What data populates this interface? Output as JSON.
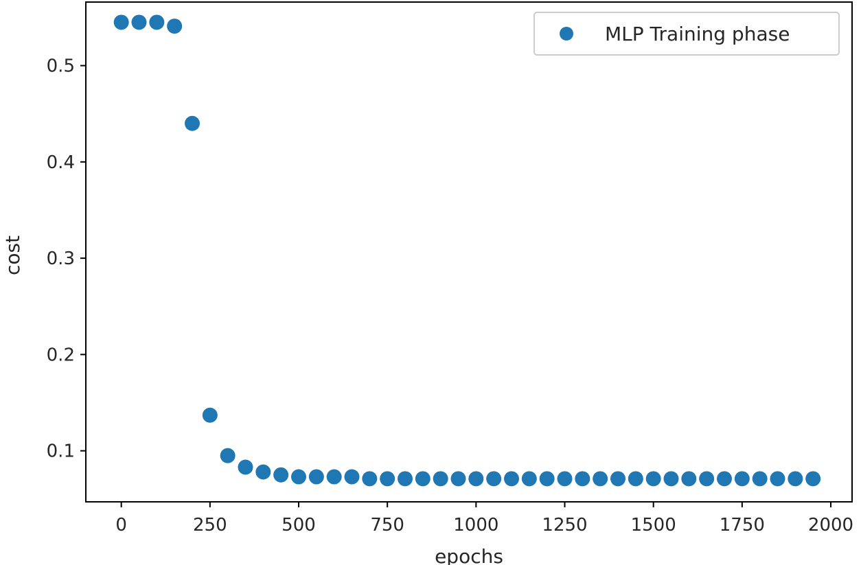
{
  "chart_data": {
    "type": "scatter",
    "title": "",
    "xlabel": "epochs",
    "ylabel": "cost",
    "xlim": [
      -100,
      2060
    ],
    "ylim": [
      0.047,
      0.566
    ],
    "xticks": [
      0,
      250,
      500,
      750,
      1000,
      1250,
      1500,
      1750,
      2000
    ],
    "xtick_labels": [
      "0",
      "250",
      "500",
      "750",
      "1000",
      "1250",
      "1500",
      "1750",
      "2000"
    ],
    "yticks": [
      0.1,
      0.2,
      0.3,
      0.4,
      0.5
    ],
    "ytick_labels": [
      "0.1",
      "0.2",
      "0.3",
      "0.4",
      "0.5"
    ],
    "grid": false,
    "legend_position": "top-right",
    "series": [
      {
        "name": "MLP Training phase",
        "color": "#1f77b4",
        "marker": "circle",
        "x": [
          0,
          50,
          100,
          150,
          200,
          250,
          300,
          350,
          400,
          450,
          500,
          550,
          600,
          650,
          700,
          750,
          800,
          850,
          900,
          950,
          1000,
          1050,
          1100,
          1150,
          1200,
          1250,
          1300,
          1350,
          1400,
          1450,
          1500,
          1550,
          1600,
          1650,
          1700,
          1750,
          1800,
          1850,
          1900,
          1950
        ],
        "y": [
          0.545,
          0.545,
          0.545,
          0.541,
          0.44,
          0.137,
          0.095,
          0.083,
          0.078,
          0.075,
          0.073,
          0.073,
          0.073,
          0.073,
          0.071,
          0.071,
          0.071,
          0.071,
          0.071,
          0.071,
          0.071,
          0.071,
          0.071,
          0.071,
          0.071,
          0.071,
          0.071,
          0.071,
          0.071,
          0.071,
          0.071,
          0.071,
          0.071,
          0.071,
          0.071,
          0.071,
          0.071,
          0.071,
          0.071,
          0.071
        ]
      }
    ]
  }
}
